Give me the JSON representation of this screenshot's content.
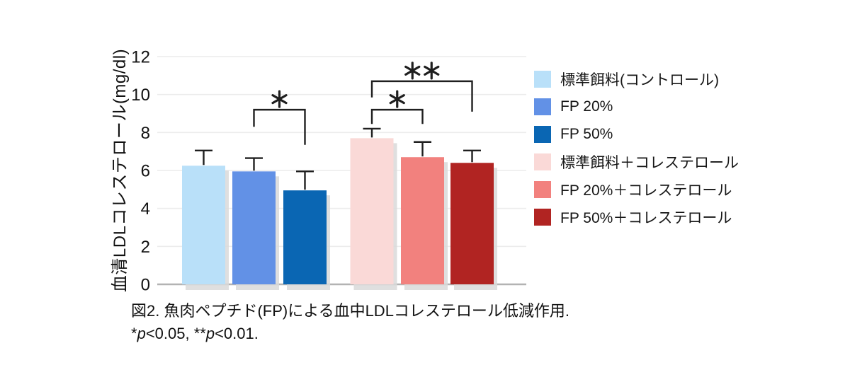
{
  "figure": {
    "caption_line1": "図2. 魚肉ペプチド(FP)による血中LDLコレステロール低減作用.",
    "note_parts": [
      "*",
      "p",
      "<0.05, **",
      "p",
      "<0.01."
    ]
  },
  "chart_data": {
    "type": "bar",
    "title": "",
    "xlabel": "",
    "ylabel": "血清LDLコレステロール(mg/dl)",
    "ylim": [
      0,
      12
    ],
    "yticks": [
      0,
      2,
      4,
      6,
      8,
      10,
      12
    ],
    "grid": true,
    "legend_position": "right",
    "categories": [
      "標準餌料(コントロール)",
      "FP 20%",
      "FP 50%",
      "標準餌料＋コレステロール",
      "FP 20%＋コレステロール",
      "FP 50%＋コレステロール"
    ],
    "values": [
      6.25,
      5.95,
      4.95,
      7.7,
      6.7,
      6.4
    ],
    "errors": [
      0.8,
      0.7,
      1.0,
      0.5,
      0.8,
      0.65
    ],
    "bar_colors": [
      "#b9e0f9",
      "#6291e6",
      "#0a66b3",
      "#fad9d7",
      "#f2817e",
      "#b12422"
    ],
    "significance": [
      {
        "between": [
          1,
          2
        ],
        "label": "*",
        "bracket_y": 9.2,
        "leg_drop": [
          8.3,
          7.35
        ]
      },
      {
        "between": [
          3,
          4
        ],
        "label": "*",
        "bracket_y": 9.2,
        "leg_drop": [
          8.45,
          8.45
        ]
      },
      {
        "between": [
          3,
          5
        ],
        "label": "**",
        "bracket_y": 10.7,
        "leg_drop": [
          9.85,
          9.1
        ]
      }
    ]
  },
  "legend": {
    "items": [
      {
        "label": "標準餌料(コントロール)",
        "color": "#b9e0f9"
      },
      {
        "label": "FP 20%",
        "color": "#6291e6"
      },
      {
        "label": "FP 50%",
        "color": "#0a66b3"
      },
      {
        "label": "標準餌料＋コレステロール",
        "color": "#fad9d7"
      },
      {
        "label": "FP 20%＋コレステロール",
        "color": "#f2817e"
      },
      {
        "label": "FP 50%＋コレステロール",
        "color": "#b12422"
      }
    ]
  },
  "colors": {
    "grid": "#ececec",
    "baseline": "#b3b3b3",
    "annotation": "#1f1f1f",
    "shadow": "#d9d9d9"
  }
}
